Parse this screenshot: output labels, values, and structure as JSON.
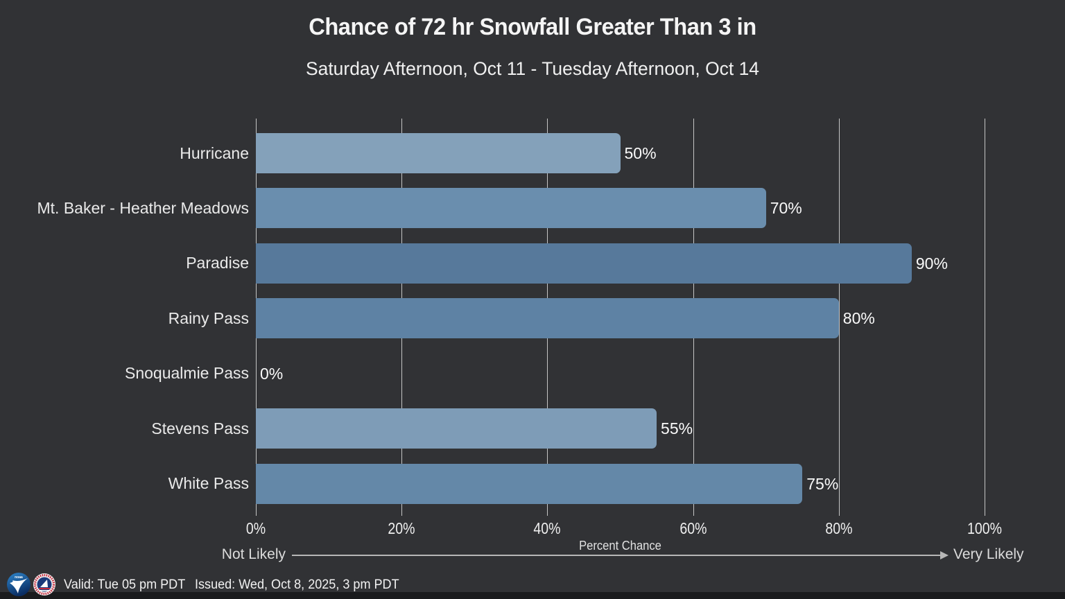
{
  "header": {
    "title": "Chance of 72 hr Snowfall Greater Than 3 in",
    "subtitle": "Saturday Afternoon, Oct 11 - Tuesday Afternoon, Oct 14"
  },
  "chart_data": {
    "type": "bar",
    "orientation": "horizontal",
    "title": "Chance of 72 hr Snowfall Greater Than 3 in",
    "subtitle": "Saturday Afternoon, Oct 11 - Tuesday Afternoon, Oct 14",
    "categories": [
      "Hurricane",
      "Mt. Baker - Heather Meadows",
      "Paradise",
      "Rainy Pass",
      "Snoqualmie Pass",
      "Stevens Pass",
      "White Pass"
    ],
    "values": [
      50,
      70,
      90,
      80,
      0,
      55,
      75
    ],
    "value_labels": [
      "50%",
      "70%",
      "90%",
      "80%",
      "0%",
      "55%",
      "75%"
    ],
    "bar_colors": [
      "#84a1ba",
      "#6a8eae",
      "#57799b",
      "#5e82a4",
      "#84a1ba",
      "#7e9cb7",
      "#6488a8"
    ],
    "xlabel": "Percent Chance",
    "xlim": [
      0,
      100
    ],
    "x_ticks": [
      {
        "value": 0,
        "label": "0%"
      },
      {
        "value": 20,
        "label": "20%"
      },
      {
        "value": 40,
        "label": "40%"
      },
      {
        "value": 60,
        "label": "60%"
      },
      {
        "value": 80,
        "label": "80%"
      },
      {
        "value": 100,
        "label": "100%"
      }
    ],
    "grid": "vertical",
    "legend": "none",
    "annotations": {
      "left_label": "Not Likely",
      "right_label": "Very Likely"
    }
  },
  "footer": {
    "valid": "Valid: Tue 05 pm PDT",
    "issued": "Issued: Wed, Oct 8, 2025, 3 pm PDT",
    "logos": [
      "noaa-logo",
      "nws-logo"
    ]
  },
  "colors": {
    "background": "#313235",
    "bottom_strip": "#1a1b1d",
    "gridline": "#c6c6c6",
    "title_text": "#f5f5f5",
    "label_text": "#eaeaea",
    "annotation_text": "#dcdcdc",
    "noaa_blue_light": "#2e86cc",
    "noaa_blue_dark": "#0a2d63",
    "nws_navy": "#1b3a7a",
    "nws_red": "#c6283a"
  }
}
